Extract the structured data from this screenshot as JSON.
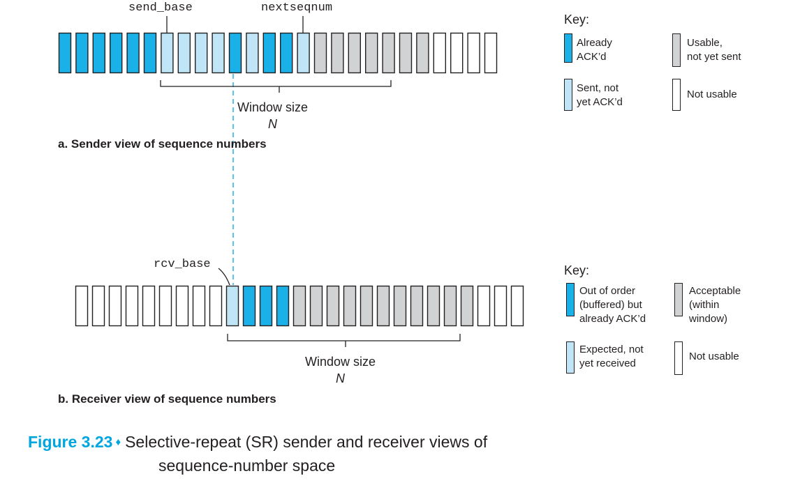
{
  "colors": {
    "acked": "#1ab0e8",
    "sent_not_acked": "#bfe5f6",
    "usable": "#d1d2d4",
    "not_usable": "#ffffff",
    "outline": "#231f20",
    "figure_accent": "#00a6e0"
  },
  "sender": {
    "send_base_label": "send_base",
    "nextseqnum_label": "nextseqnum",
    "window_size_label": "Window size",
    "window_n": "N",
    "caption": "a. Sender view of sequence numbers",
    "cells": [
      "acked",
      "acked",
      "acked",
      "acked",
      "acked",
      "acked",
      "sent",
      "sent",
      "sent",
      "sent",
      "acked",
      "sent",
      "acked",
      "acked",
      "sent",
      "usable",
      "usable",
      "usable",
      "usable",
      "usable",
      "usable",
      "usable",
      "not_usable",
      "not_usable",
      "not_usable",
      "not_usable"
    ],
    "key": {
      "title": "Key:",
      "items": [
        {
          "state": "acked",
          "label": "Already\nACK’d"
        },
        {
          "state": "usable",
          "label": "Usable,\nnot yet sent"
        },
        {
          "state": "sent",
          "label": "Sent, not\nyet ACK’d"
        },
        {
          "state": "not_usable",
          "label": "Not usable"
        }
      ]
    }
  },
  "receiver": {
    "rcv_base_label": "rcv_base",
    "window_size_label": "Window size",
    "window_n": "N",
    "caption": "b. Receiver view of sequence numbers",
    "cells": [
      "not_usable",
      "not_usable",
      "not_usable",
      "not_usable",
      "not_usable",
      "not_usable",
      "not_usable",
      "not_usable",
      "not_usable",
      "expected",
      "acked",
      "acked",
      "acked",
      "usable",
      "usable",
      "usable",
      "usable",
      "usable",
      "usable",
      "usable",
      "usable",
      "usable",
      "usable",
      "usable",
      "not_usable",
      "not_usable",
      "not_usable"
    ],
    "key": {
      "title": "Key:",
      "items": [
        {
          "state": "acked",
          "label": "Out of order\n(buffered) but\nalready ACK’d"
        },
        {
          "state": "usable",
          "label": "Acceptable\n(within\nwindow)"
        },
        {
          "state": "sent",
          "label": "Expected, not\nyet received"
        },
        {
          "state": "not_usable",
          "label": "Not usable"
        }
      ]
    }
  },
  "figure": {
    "number": "Figure 3.23",
    "separator": "♦",
    "title_line1": "Selective-repeat (SR) sender and receiver views of",
    "title_line2": "sequence-number space"
  }
}
